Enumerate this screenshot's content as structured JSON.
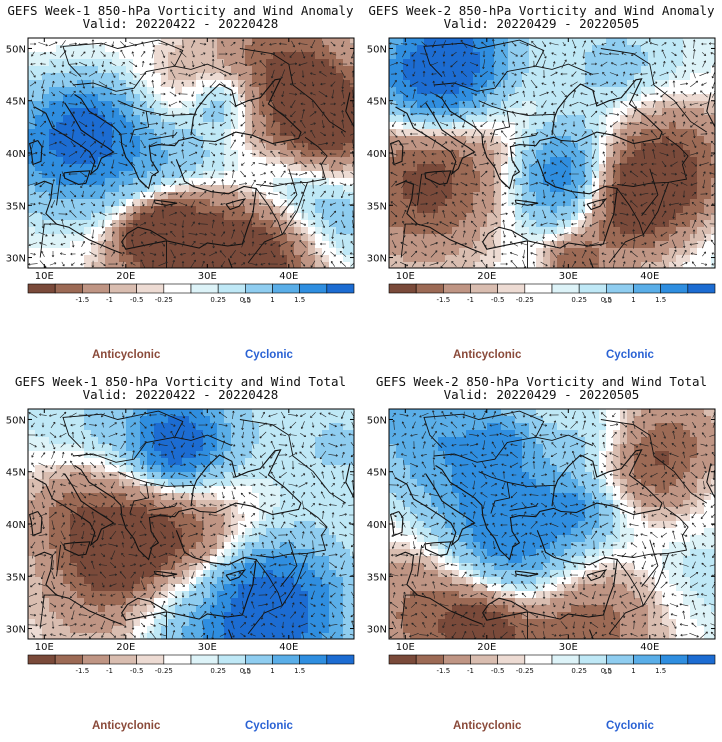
{
  "panels": [
    {
      "title": "GEFS Week-1 850-hPa Vorticity and Wind Anomaly",
      "valid": "Valid: 20220422 - 20220428",
      "seed": 11
    },
    {
      "title": "GEFS Week-2 850-hPa Vorticity and Wind Anomaly",
      "valid": "Valid: 20220429 - 20220505",
      "seed": 23
    },
    {
      "title": "GEFS Week-1 850-hPa Vorticity and Wind Total",
      "valid": "Valid: 20220422 - 20220428",
      "seed": 37
    },
    {
      "title": "GEFS Week-2 850-hPa Vorticity and Wind Total",
      "valid": "Valid: 20220429 - 20220505",
      "seed": 51
    }
  ],
  "map": {
    "lon_range": [
      8,
      48
    ],
    "lat_range": [
      29,
      51
    ],
    "lat_labels": [
      "50N",
      "45N",
      "40N",
      "35N",
      "30N"
    ],
    "lat_values": [
      50,
      45,
      40,
      35,
      30
    ],
    "lon_labels": [
      "10E",
      "20E",
      "30E",
      "40E"
    ],
    "lon_values": [
      10,
      20,
      30,
      40
    ]
  },
  "colorbar": {
    "labels": [
      "-1.5",
      "-1",
      "-0.5",
      "-0.25",
      "0.25",
      "0.5",
      "1",
      "1.5"
    ],
    "unit_label": "10",
    "exponent_label": "-5",
    "colors": [
      "#7a4a3a",
      "#9c6a55",
      "#bf9584",
      "#d9bdb0",
      "#eddbd3",
      "#ffffff",
      "#ddf3f8",
      "#bfe8f6",
      "#8fcdf0",
      "#5aaee8",
      "#2f8ee0",
      "#1c6cd2"
    ]
  },
  "legend": {
    "anticyclonic": "Anticyclonic",
    "cyclonic": "Cyclonic"
  }
}
